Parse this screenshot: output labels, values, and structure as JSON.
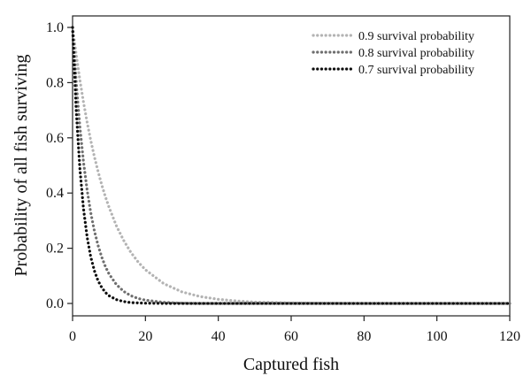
{
  "chart_data": {
    "type": "line",
    "title": "",
    "xlabel": "Captured fish",
    "ylabel": "Probability of all fish surviving",
    "xlim": [
      0,
      120
    ],
    "ylim": [
      0,
      1
    ],
    "x_ticks": [
      0,
      20,
      40,
      60,
      80,
      100,
      120
    ],
    "y_ticks": [
      0.0,
      0.2,
      0.4,
      0.6,
      0.8,
      1.0
    ],
    "y_tick_labels": [
      "0.0",
      "0.2",
      "0.4",
      "0.6",
      "0.8",
      "1.0"
    ],
    "grid": false,
    "legend_position": "top-right",
    "x": [
      0,
      1,
      2,
      3,
      4,
      5,
      6,
      7,
      8,
      9,
      10,
      12,
      14,
      16,
      18,
      20,
      25,
      30,
      35,
      40,
      45,
      50,
      60,
      70,
      80,
      90,
      100,
      110,
      120
    ],
    "series": [
      {
        "name": "0.9 survival probability",
        "color": "#b3b3b3",
        "values": [
          1.0,
          0.9,
          0.81,
          0.729,
          0.656,
          0.59,
          0.531,
          0.478,
          0.43,
          0.387,
          0.349,
          0.282,
          0.229,
          0.185,
          0.15,
          0.122,
          0.072,
          0.042,
          0.025,
          0.015,
          0.009,
          0.005,
          0.002,
          0.001,
          0.0,
          0.0,
          0.0,
          0.0,
          0.0
        ]
      },
      {
        "name": "0.8 survival probability",
        "color": "#6e6e6e",
        "values": [
          1.0,
          0.8,
          0.64,
          0.512,
          0.41,
          0.328,
          0.262,
          0.21,
          0.168,
          0.134,
          0.107,
          0.069,
          0.044,
          0.028,
          0.018,
          0.012,
          0.004,
          0.001,
          0.0,
          0.0,
          0.0,
          0.0,
          0.0,
          0.0,
          0.0,
          0.0,
          0.0,
          0.0,
          0.0
        ]
      },
      {
        "name": "0.7 survival probability",
        "color": "#0d0d0d",
        "values": [
          1.0,
          0.7,
          0.49,
          0.343,
          0.24,
          0.168,
          0.118,
          0.082,
          0.058,
          0.04,
          0.028,
          0.014,
          0.007,
          0.003,
          0.002,
          0.001,
          0.0,
          0.0,
          0.0,
          0.0,
          0.0,
          0.0,
          0.0,
          0.0,
          0.0,
          0.0,
          0.0,
          0.0,
          0.0
        ]
      }
    ]
  }
}
